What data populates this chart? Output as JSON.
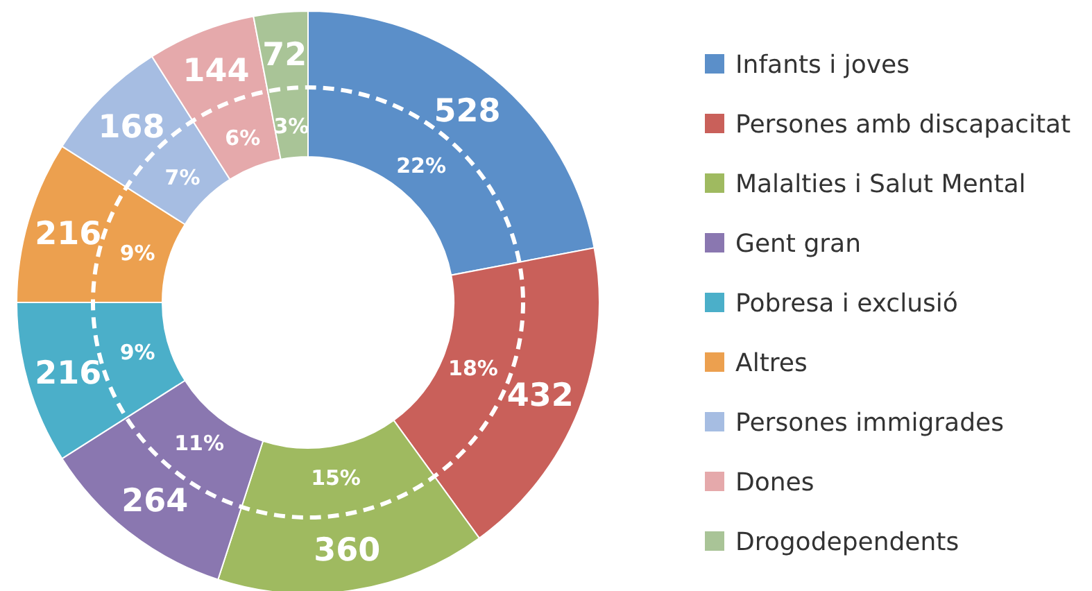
{
  "chart_data": {
    "type": "donut",
    "categories": [
      "Infants i joves",
      "Persones amb discapacitat",
      "Malalties i Salut Mental",
      "Gent gran",
      "Pobresa i exclusió",
      "Altres",
      "Persones immigrades",
      "Dones",
      "Drogodependents"
    ],
    "values": [
      528,
      432,
      360,
      264,
      216,
      216,
      168,
      144,
      72
    ],
    "colors": [
      "#5b8fc9",
      "#c9605a",
      "#9fba60",
      "#8a77b0",
      "#4bafc9",
      "#eca04f",
      "#a6bde2",
      "#e5a9ab",
      "#a9c497"
    ],
    "data_labels": true,
    "annotations": [
      {
        "text": "22%",
        "x": "Infants i joves"
      },
      {
        "text": "18%",
        "x": "Persones amb discapacitat"
      },
      {
        "text": "15%",
        "x": "Malalties i Salut Mental"
      },
      {
        "text": "11%",
        "x": "Gent gran"
      },
      {
        "text": "9%",
        "x": "Pobresa i exclusió"
      },
      {
        "text": "9%",
        "x": "Altres"
      },
      {
        "text": "7%",
        "x": "Persones immigrades"
      },
      {
        "text": "6%",
        "x": "Dones"
      },
      {
        "text": "3%",
        "x": "Drogodependents"
      }
    ],
    "legend": "right"
  }
}
